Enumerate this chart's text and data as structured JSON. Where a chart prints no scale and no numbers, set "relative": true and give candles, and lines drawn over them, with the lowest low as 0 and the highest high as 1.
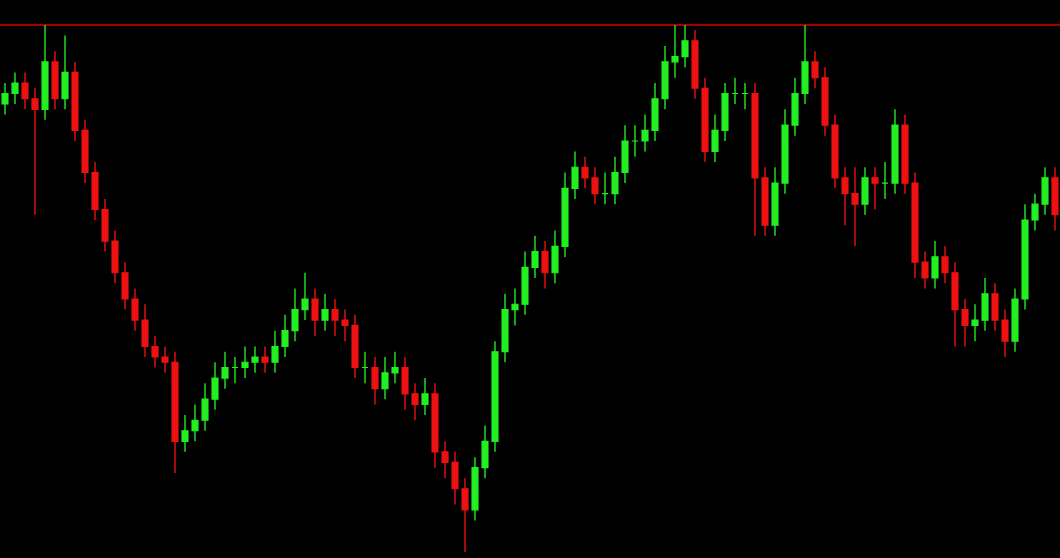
{
  "chart_data": {
    "type": "candlestick",
    "relative": true,
    "categories": [
      null,
      null,
      null,
      null,
      null,
      null,
      null,
      null,
      null,
      null,
      null,
      null,
      null,
      null,
      null,
      null,
      null,
      null,
      null,
      null,
      null,
      null,
      null,
      null,
      null,
      null,
      null,
      null,
      null,
      null,
      null,
      null,
      null,
      null,
      null,
      null,
      null,
      null,
      null,
      null,
      null,
      null,
      null,
      null,
      null,
      null,
      null,
      null,
      null,
      null,
      null,
      null,
      null,
      null,
      null,
      null,
      null,
      null,
      null,
      null,
      null,
      null,
      null,
      null,
      null,
      null,
      null,
      null,
      null,
      null,
      null,
      null,
      null,
      null,
      null,
      null,
      null,
      null,
      null,
      null,
      null,
      null,
      null,
      null,
      null,
      null,
      null,
      null,
      null,
      null,
      null,
      null,
      null,
      null,
      null,
      null,
      null,
      null,
      null,
      null,
      null,
      null,
      null,
      null,
      null,
      null
    ],
    "colors": [
      "#22ee22",
      "#22ee22",
      "#ee1111",
      "#ee1111",
      "#22ee22",
      "#ee1111",
      "#22ee22",
      "#ee1111",
      "#ee1111",
      "#ee1111",
      "#ee1111",
      "#ee1111",
      "#ee1111",
      "#ee1111",
      "#ee1111",
      "#ee1111",
      "#ee1111",
      "#ee1111",
      "#22ee22",
      "#22ee22",
      "#22ee22",
      "#22ee22",
      "#22ee22",
      "#22ee22",
      "#22ee22",
      "#22ee22",
      "#ee1111",
      "#22ee22",
      "#22ee22",
      "#22ee22",
      "#22ee22",
      "#ee1111",
      "#22ee22",
      "#ee1111",
      "#ee1111",
      "#ee1111",
      "#22ee22",
      "#ee1111",
      "#22ee22",
      "#22ee22",
      "#ee1111",
      "#ee1111",
      "#22ee22",
      "#ee1111",
      "#ee1111",
      "#ee1111",
      "#ee1111",
      "#22ee22",
      "#22ee22",
      "#22ee22",
      "#22ee22",
      "#22ee22",
      "#22ee22",
      "#22ee22",
      "#ee1111",
      "#22ee22",
      "#22ee22",
      "#22ee22",
      "#ee1111",
      "#ee1111",
      "#22ee22",
      "#22ee22",
      "#22ee22",
      "#22ee22",
      "#22ee22",
      "#22ee22",
      "#22ee22",
      "#22ee22",
      "#22ee22",
      "#ee1111",
      "#ee1111",
      "#22ee22",
      "#22ee22",
      "#22ee22",
      "#22ee22",
      "#ee1111",
      "#ee1111",
      "#22ee22",
      "#22ee22",
      "#22ee22",
      "#22ee22",
      "#ee1111",
      "#ee1111",
      "#ee1111",
      "#ee1111",
      "#ee1111",
      "#22ee22",
      "#ee1111",
      "#22ee22",
      "#22ee22",
      "#ee1111",
      "#ee1111",
      "#ee1111",
      "#22ee22",
      "#ee1111",
      "#ee1111",
      "#ee1111",
      "#22ee22",
      "#22ee22",
      "#ee1111",
      "#ee1111",
      "#22ee22",
      "#22ee22",
      "#22ee22",
      "#22ee22",
      "#ee1111"
    ],
    "ref_lines": [
      {
        "axis": "y",
        "value": 1.0,
        "color": "#dd0000"
      }
    ],
    "ohlc": [
      [
        0.85,
        0.89,
        0.83,
        0.87
      ],
      [
        0.87,
        0.91,
        0.85,
        0.89
      ],
      [
        0.89,
        0.91,
        0.84,
        0.86
      ],
      [
        0.86,
        0.88,
        0.64,
        0.84
      ],
      [
        0.84,
        1.0,
        0.82,
        0.93
      ],
      [
        0.93,
        0.95,
        0.84,
        0.86
      ],
      [
        0.86,
        0.98,
        0.84,
        0.91
      ],
      [
        0.91,
        0.93,
        0.78,
        0.8
      ],
      [
        0.8,
        0.82,
        0.7,
        0.72
      ],
      [
        0.72,
        0.74,
        0.63,
        0.65
      ],
      [
        0.65,
        0.67,
        0.57,
        0.59
      ],
      [
        0.59,
        0.61,
        0.51,
        0.53
      ],
      [
        0.53,
        0.55,
        0.46,
        0.48
      ],
      [
        0.48,
        0.5,
        0.42,
        0.44
      ],
      [
        0.44,
        0.47,
        0.37,
        0.39
      ],
      [
        0.39,
        0.41,
        0.35,
        0.37
      ],
      [
        0.37,
        0.39,
        0.34,
        0.36
      ],
      [
        0.36,
        0.38,
        0.15,
        0.21
      ],
      [
        0.21,
        0.26,
        0.19,
        0.23
      ],
      [
        0.23,
        0.28,
        0.21,
        0.25
      ],
      [
        0.25,
        0.32,
        0.23,
        0.29
      ],
      [
        0.29,
        0.36,
        0.27,
        0.33
      ],
      [
        0.33,
        0.38,
        0.31,
        0.35
      ],
      [
        0.35,
        0.37,
        0.32,
        0.35
      ],
      [
        0.35,
        0.39,
        0.33,
        0.36
      ],
      [
        0.36,
        0.39,
        0.34,
        0.37
      ],
      [
        0.37,
        0.39,
        0.34,
        0.36
      ],
      [
        0.36,
        0.42,
        0.34,
        0.39
      ],
      [
        0.39,
        0.45,
        0.37,
        0.42
      ],
      [
        0.42,
        0.5,
        0.4,
        0.46
      ],
      [
        0.46,
        0.53,
        0.44,
        0.48
      ],
      [
        0.48,
        0.5,
        0.41,
        0.44
      ],
      [
        0.44,
        0.49,
        0.42,
        0.46
      ],
      [
        0.46,
        0.48,
        0.41,
        0.44
      ],
      [
        0.44,
        0.46,
        0.4,
        0.43
      ],
      [
        0.43,
        0.45,
        0.33,
        0.35
      ],
      [
        0.35,
        0.38,
        0.32,
        0.35
      ],
      [
        0.35,
        0.37,
        0.28,
        0.31
      ],
      [
        0.31,
        0.37,
        0.29,
        0.34
      ],
      [
        0.34,
        0.38,
        0.32,
        0.35
      ],
      [
        0.35,
        0.37,
        0.27,
        0.3
      ],
      [
        0.3,
        0.32,
        0.25,
        0.28
      ],
      [
        0.28,
        0.33,
        0.26,
        0.3
      ],
      [
        0.3,
        0.32,
        0.16,
        0.19
      ],
      [
        0.19,
        0.21,
        0.14,
        0.17
      ],
      [
        0.17,
        0.19,
        0.09,
        0.12
      ],
      [
        0.12,
        0.14,
        0.0,
        0.08
      ],
      [
        0.08,
        0.18,
        0.06,
        0.16
      ],
      [
        0.16,
        0.24,
        0.14,
        0.21
      ],
      [
        0.21,
        0.4,
        0.19,
        0.38
      ],
      [
        0.38,
        0.49,
        0.36,
        0.46
      ],
      [
        0.46,
        0.5,
        0.43,
        0.47
      ],
      [
        0.47,
        0.57,
        0.45,
        0.54
      ],
      [
        0.54,
        0.6,
        0.52,
        0.57
      ],
      [
        0.57,
        0.59,
        0.5,
        0.53
      ],
      [
        0.53,
        0.61,
        0.51,
        0.58
      ],
      [
        0.58,
        0.72,
        0.56,
        0.69
      ],
      [
        0.69,
        0.76,
        0.67,
        0.73
      ],
      [
        0.73,
        0.75,
        0.69,
        0.71
      ],
      [
        0.71,
        0.73,
        0.66,
        0.68
      ],
      [
        0.68,
        0.72,
        0.66,
        0.68
      ],
      [
        0.68,
        0.75,
        0.66,
        0.72
      ],
      [
        0.72,
        0.81,
        0.7,
        0.78
      ],
      [
        0.78,
        0.81,
        0.75,
        0.78
      ],
      [
        0.78,
        0.83,
        0.76,
        0.8
      ],
      [
        0.8,
        0.89,
        0.78,
        0.86
      ],
      [
        0.86,
        0.96,
        0.84,
        0.93
      ],
      [
        0.93,
        1.0,
        0.9,
        0.94
      ],
      [
        0.94,
        1.0,
        0.92,
        0.97
      ],
      [
        0.97,
        0.99,
        0.86,
        0.88
      ],
      [
        0.88,
        0.9,
        0.74,
        0.76
      ],
      [
        0.76,
        0.83,
        0.74,
        0.8
      ],
      [
        0.8,
        0.89,
        0.78,
        0.87
      ],
      [
        0.87,
        0.9,
        0.85,
        0.87
      ],
      [
        0.87,
        0.89,
        0.84,
        0.87
      ],
      [
        0.87,
        0.89,
        0.6,
        0.71
      ],
      [
        0.71,
        0.73,
        0.6,
        0.62
      ],
      [
        0.62,
        0.73,
        0.6,
        0.7
      ],
      [
        0.7,
        0.84,
        0.68,
        0.81
      ],
      [
        0.81,
        0.9,
        0.79,
        0.87
      ],
      [
        0.87,
        1.0,
        0.85,
        0.93
      ],
      [
        0.93,
        0.95,
        0.88,
        0.9
      ],
      [
        0.9,
        0.92,
        0.79,
        0.81
      ],
      [
        0.81,
        0.83,
        0.69,
        0.71
      ],
      [
        0.71,
        0.73,
        0.62,
        0.68
      ],
      [
        0.68,
        0.73,
        0.58,
        0.66
      ],
      [
        0.66,
        0.73,
        0.64,
        0.71
      ],
      [
        0.71,
        0.73,
        0.65,
        0.7
      ],
      [
        0.7,
        0.74,
        0.67,
        0.7
      ],
      [
        0.7,
        0.84,
        0.68,
        0.81
      ],
      [
        0.81,
        0.83,
        0.68,
        0.7
      ],
      [
        0.7,
        0.72,
        0.52,
        0.55
      ],
      [
        0.55,
        0.57,
        0.5,
        0.52
      ],
      [
        0.52,
        0.59,
        0.5,
        0.56
      ],
      [
        0.56,
        0.58,
        0.51,
        0.53
      ],
      [
        0.53,
        0.55,
        0.39,
        0.46
      ],
      [
        0.46,
        0.48,
        0.39,
        0.43
      ],
      [
        0.43,
        0.47,
        0.4,
        0.44
      ],
      [
        0.44,
        0.52,
        0.42,
        0.49
      ],
      [
        0.49,
        0.51,
        0.42,
        0.44
      ],
      [
        0.44,
        0.46,
        0.37,
        0.4
      ],
      [
        0.4,
        0.5,
        0.38,
        0.48
      ],
      [
        0.48,
        0.66,
        0.46,
        0.63
      ],
      [
        0.63,
        0.68,
        0.61,
        0.66
      ],
      [
        0.66,
        0.73,
        0.64,
        0.71
      ],
      [
        0.71,
        0.73,
        0.61,
        0.64
      ]
    ]
  }
}
